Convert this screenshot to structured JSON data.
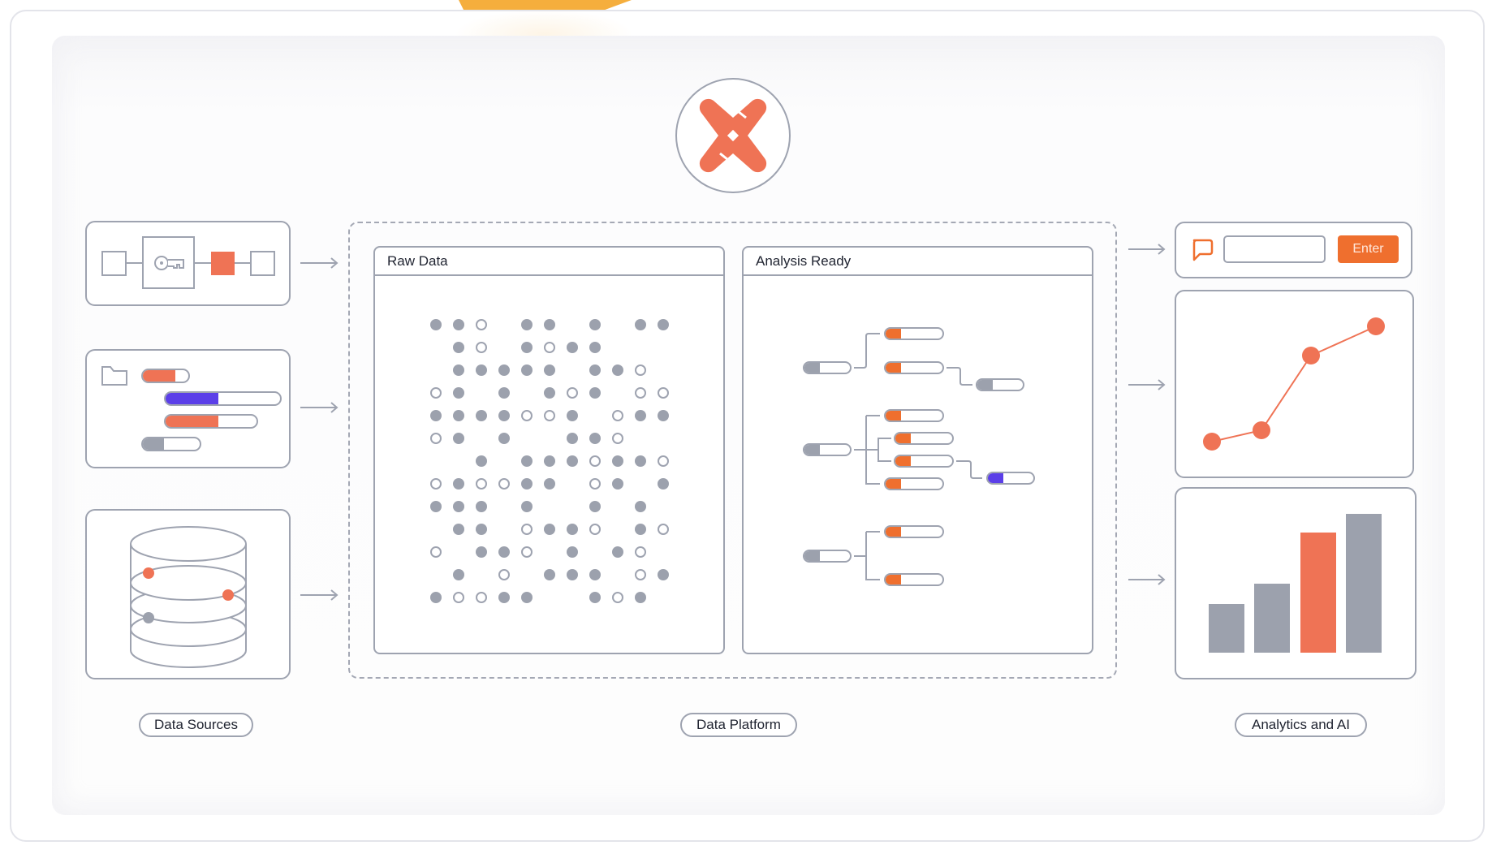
{
  "colors": {
    "accent_orange": "#ef7355",
    "button_orange": "#ef6f2e",
    "purple": "#5b3fe8",
    "gray_fill": "#9ca1ad",
    "stroke": "#9ea3b0",
    "sun_yellow": "#f5ae3d"
  },
  "logo": {
    "icon": "dbt-logo-icon"
  },
  "sections": {
    "data_sources": {
      "label": "Data Sources",
      "cards": [
        {
          "icon": "schema-key-icon",
          "description": "table relationship with key"
        },
        {
          "icon": "folder-files-icon",
          "bars": [
            {
              "fill_pct": 62,
              "color": "orange"
            },
            {
              "fill_pct": 46,
              "color": "purple"
            },
            {
              "fill_pct": 60,
              "color": "orange"
            },
            {
              "fill_pct": 38,
              "color": "gray"
            }
          ]
        },
        {
          "icon": "database-icon"
        }
      ]
    },
    "data_platform": {
      "label": "Data Platform",
      "panels": [
        {
          "title": "Raw Data",
          "dot_grid": [
            "FFO.FF.F.FF",
            ".FO.FOFF...",
            ".FFFFF.FFO.",
            "OF.F.FOF.OO",
            "FFFFOOF.OFF",
            "OF.F..FFO..",
            "..F.FFFOFFO",
            "OFOOFF.OF.F",
            "FFF.F..F.F.",
            ".FF.OFFO.FO",
            "O.FFO.F.FO.",
            ".F.O.FFF.OF",
            "FOOFF..FOF."
          ]
        },
        {
          "title": "Analysis Ready",
          "groups": [
            {
              "source": "gray",
              "children": [
                "orange",
                "orange"
              ],
              "grandchild": "gray"
            },
            {
              "source": "gray",
              "children": [
                "orange",
                "orange",
                "orange",
                "orange"
              ],
              "grandchild": "purple"
            },
            {
              "source": "gray",
              "children": [
                "orange",
                "orange"
              ]
            }
          ]
        }
      ]
    },
    "analytics_ai": {
      "label": "Analytics and AI",
      "chat": {
        "icon": "chat-bubble-icon",
        "input_value": "",
        "button_label": "Enter"
      },
      "line_chart": {
        "points": [
          [
            0,
            10
          ],
          [
            1,
            20
          ],
          [
            2,
            70
          ],
          [
            3,
            95
          ]
        ]
      },
      "bar_chart": {
        "values": [
          33,
          47,
          82,
          95
        ],
        "highlight_index": 2
      }
    }
  }
}
